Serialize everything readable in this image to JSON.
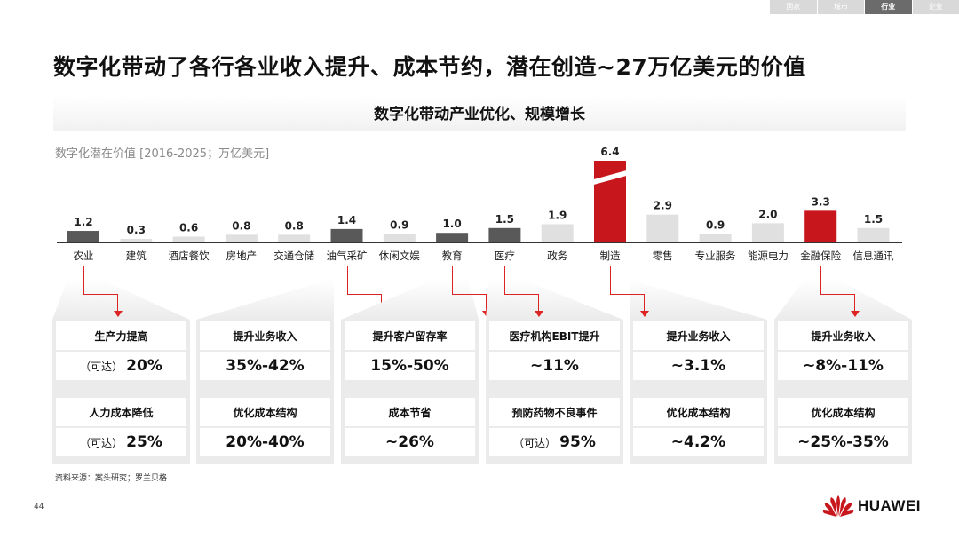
{
  "nav_tabs": [
    {
      "label": "国家",
      "active": false
    },
    {
      "label": "城市",
      "active": false
    },
    {
      "label": "行业",
      "active": true
    },
    {
      "label": "企业",
      "active": false
    }
  ],
  "title": "数字化带动了各行各业收入提升、成本节约，潜在创造~27万亿美元的价值",
  "subtitle": "数字化带动产业优化、规模增长",
  "unit_label": "数字化潜在价值 [2016-2025；万亿美元]",
  "chart_data": {
    "type": "bar",
    "ylabel": "数字化潜在价值 [2016-2025；万亿美元]",
    "categories": [
      "农业",
      "建筑",
      "酒店餐饮",
      "房地产",
      "交通仓储",
      "油气采矿",
      "休闲文娱",
      "教育",
      "医疗",
      "政务",
      "制造",
      "零售",
      "专业服务",
      "能源电力",
      "金融保险",
      "信息通讯"
    ],
    "values": [
      1.2,
      0.3,
      0.6,
      0.8,
      0.8,
      1.4,
      0.9,
      1.0,
      1.5,
      1.9,
      6.4,
      2.9,
      0.9,
      2.0,
      3.3,
      1.5
    ],
    "value_labels": [
      "1.2",
      "0.3",
      "0.6",
      "0.8",
      "0.8",
      "1.4",
      "0.9",
      "1.0",
      "1.5",
      "1.9",
      "6.4",
      "2.9",
      "0.9",
      "2.0",
      "3.3",
      "1.5"
    ],
    "bar_colors": [
      "#595959",
      "#e0e0e0",
      "#e0e0e0",
      "#e0e0e0",
      "#e0e0e0",
      "#595959",
      "#e0e0e0",
      "#595959",
      "#595959",
      "#e0e0e0",
      "#c8161d",
      "#e0e0e0",
      "#e0e0e0",
      "#e0e0e0",
      "#c8161d",
      "#e0e0e0"
    ],
    "axis_break_category": "制造"
  },
  "panels": [
    {
      "rows": [
        {
          "label": "生产力提高",
          "prefix": "（可达）",
          "value": "20%"
        },
        {
          "label": "人力成本降低",
          "prefix": "（可达）",
          "value": "25%"
        }
      ]
    },
    {
      "rows": [
        {
          "label": "提升业务收入",
          "prefix": "",
          "value": "35%-42%"
        },
        {
          "label": "优化成本结构",
          "prefix": "",
          "value": "20%-40%"
        }
      ]
    },
    {
      "rows": [
        {
          "label": "提升客户留存率",
          "prefix": "",
          "value": "15%-50%"
        },
        {
          "label": "成本节省",
          "prefix": "",
          "value": "~26%"
        }
      ]
    },
    {
      "rows": [
        {
          "label": "医疗机构EBIT提升",
          "prefix": "",
          "value": "~11%"
        },
        {
          "label": "预防药物不良事件",
          "prefix": "（可达）",
          "value": "95%"
        }
      ]
    },
    {
      "rows": [
        {
          "label": "提升业务收入",
          "prefix": "",
          "value": "~3.1%"
        },
        {
          "label": "优化成本结构",
          "prefix": "",
          "value": "~4.2%"
        }
      ]
    },
    {
      "rows": [
        {
          "label": "提升业务收入",
          "prefix": "",
          "value": "~8%-11%"
        },
        {
          "label": "优化成本结构",
          "prefix": "",
          "value": "~25%-35%"
        }
      ]
    }
  ],
  "source": "资料来源：案头研究；罗兰贝格",
  "page_number": "44",
  "logo_text": "HUAWEI",
  "colors": {
    "accent": "#c8161d",
    "dark_bar": "#595959",
    "light_bar": "#e0e0e0"
  }
}
